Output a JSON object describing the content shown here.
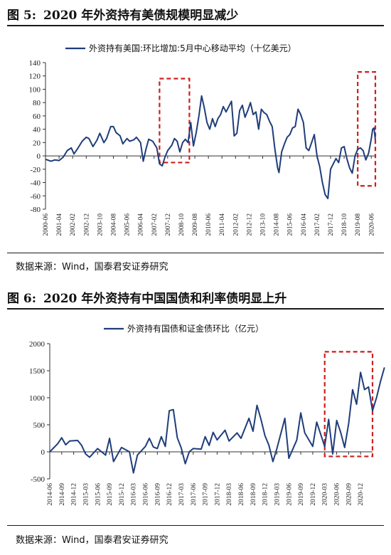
{
  "figures": [
    {
      "number": "图 5:",
      "title": "2020 年外资持有美债规模明显减少",
      "source": "数据来源：Wind，国泰君安证券研究"
    },
    {
      "number": "图 6:",
      "title": "2020 年外资持有中国国债和利率债明显上升",
      "source": "数据来源：Wind，国泰君安证券研究"
    }
  ],
  "colors": {
    "line": "#1f3d7a",
    "highlight": "#cc1f1f",
    "axis": "#333333"
  },
  "chart_data": [
    {
      "type": "line",
      "legend": "外资持有美国:环比增加:5月中心移动平均（十亿美元）",
      "legend_position": "top-center",
      "ylim": [
        -80,
        140
      ],
      "yticks": [
        140,
        120,
        100,
        80,
        60,
        40,
        20,
        0,
        -20,
        -40,
        -60,
        -80
      ],
      "xlim": [
        "2000-06",
        "2020-09"
      ],
      "xticks": [
        "2000-06",
        "2001-04",
        "2002-02",
        "2002-12",
        "2003-10",
        "2004-08",
        "2005-06",
        "2006-04",
        "2007-02",
        "2007-12",
        "2008-10",
        "2009-08",
        "2010-06",
        "2011-04",
        "2012-02",
        "2012-12",
        "2013-10",
        "2014-08",
        "2015-06",
        "2016-04",
        "2017-02",
        "2017-12",
        "2018-10",
        "2019-08",
        "2020-06"
      ],
      "highlights": [
        [
          "2007-06",
          "2009-04"
        ],
        [
          "2019-08",
          "2020-09"
        ]
      ],
      "grid": false,
      "series": [
        {
          "points": [
            [
              "2000-06",
              -5
            ],
            [
              "2000-10",
              -8
            ],
            [
              "2001-01",
              -6
            ],
            [
              "2001-04",
              -7
            ],
            [
              "2001-07",
              -2
            ],
            [
              "2001-10",
              8
            ],
            [
              "2002-01",
              12
            ],
            [
              "2002-03",
              3
            ],
            [
              "2002-06",
              12
            ],
            [
              "2002-09",
              22
            ],
            [
              "2002-12",
              28
            ],
            [
              "2003-02",
              26
            ],
            [
              "2003-05",
              14
            ],
            [
              "2003-08",
              24
            ],
            [
              "2003-10",
              34
            ],
            [
              "2004-01",
              20
            ],
            [
              "2004-03",
              26
            ],
            [
              "2004-06",
              44
            ],
            [
              "2004-08",
              44
            ],
            [
              "2004-10",
              35
            ],
            [
              "2005-01",
              30
            ],
            [
              "2005-03",
              18
            ],
            [
              "2005-06",
              26
            ],
            [
              "2005-08",
              22
            ],
            [
              "2005-11",
              24
            ],
            [
              "2006-01",
              28
            ],
            [
              "2006-04",
              20
            ],
            [
              "2006-06",
              -8
            ],
            [
              "2006-08",
              10
            ],
            [
              "2006-10",
              25
            ],
            [
              "2007-01",
              22
            ],
            [
              "2007-04",
              12
            ],
            [
              "2007-06",
              -12
            ],
            [
              "2007-08",
              -15
            ],
            [
              "2007-10",
              -2
            ],
            [
              "2007-12",
              8
            ],
            [
              "2008-03",
              16
            ],
            [
              "2008-05",
              26
            ],
            [
              "2008-07",
              22
            ],
            [
              "2008-09",
              6
            ],
            [
              "2008-11",
              20
            ],
            [
              "2009-01",
              25
            ],
            [
              "2009-03",
              20
            ],
            [
              "2009-05",
              50
            ],
            [
              "2009-07",
              15
            ],
            [
              "2009-09",
              35
            ],
            [
              "2009-11",
              60
            ],
            [
              "2010-01",
              90
            ],
            [
              "2010-03",
              72
            ],
            [
              "2010-05",
              50
            ],
            [
              "2010-07",
              40
            ],
            [
              "2010-09",
              56
            ],
            [
              "2010-11",
              44
            ],
            [
              "2011-01",
              56
            ],
            [
              "2011-03",
              62
            ],
            [
              "2011-05",
              74
            ],
            [
              "2011-07",
              66
            ],
            [
              "2011-09",
              74
            ],
            [
              "2011-11",
              82
            ],
            [
              "2012-01",
              30
            ],
            [
              "2012-03",
              34
            ],
            [
              "2012-05",
              68
            ],
            [
              "2012-07",
              76
            ],
            [
              "2012-09",
              58
            ],
            [
              "2012-11",
              68
            ],
            [
              "2013-01",
              80
            ],
            [
              "2013-03",
              62
            ],
            [
              "2013-05",
              66
            ],
            [
              "2013-07",
              40
            ],
            [
              "2013-09",
              70
            ],
            [
              "2013-11",
              65
            ],
            [
              "2014-01",
              62
            ],
            [
              "2014-03",
              52
            ],
            [
              "2014-05",
              44
            ],
            [
              "2014-07",
              10
            ],
            [
              "2014-09",
              -18
            ],
            [
              "2014-10",
              -25
            ],
            [
              "2014-12",
              6
            ],
            [
              "2015-02",
              18
            ],
            [
              "2015-04",
              28
            ],
            [
              "2015-06",
              32
            ],
            [
              "2015-08",
              42
            ],
            [
              "2015-10",
              44
            ],
            [
              "2015-12",
              70
            ],
            [
              "2016-02",
              62
            ],
            [
              "2016-04",
              50
            ],
            [
              "2016-06",
              12
            ],
            [
              "2016-08",
              8
            ],
            [
              "2016-10",
              20
            ],
            [
              "2016-12",
              32
            ],
            [
              "2017-02",
              0
            ],
            [
              "2017-04",
              -16
            ],
            [
              "2017-06",
              -40
            ],
            [
              "2017-08",
              -58
            ],
            [
              "2017-10",
              -64
            ],
            [
              "2017-12",
              -20
            ],
            [
              "2018-02",
              -12
            ],
            [
              "2018-04",
              -4
            ],
            [
              "2018-06",
              -10
            ],
            [
              "2018-08",
              12
            ],
            [
              "2018-10",
              14
            ],
            [
              "2018-12",
              -4
            ],
            [
              "2019-02",
              -18
            ],
            [
              "2019-04",
              -26
            ],
            [
              "2019-06",
              0
            ],
            [
              "2019-08",
              10
            ],
            [
              "2019-10",
              12
            ],
            [
              "2019-12",
              8
            ],
            [
              "2020-02",
              -6
            ],
            [
              "2020-04",
              4
            ],
            [
              "2020-06",
              26
            ],
            [
              "2020-07",
              40
            ],
            [
              "2020-08",
              42
            ],
            [
              "2020-09",
              24
            ]
          ]
        }
      ]
    },
    {
      "type": "line",
      "legend": "外资持有国债和证金债环比（亿元）",
      "legend_position": "top-left",
      "ylim": [
        -500,
        2000
      ],
      "yticks": [
        2000,
        1500,
        1000,
        500,
        0,
        -500
      ],
      "xlim": [
        "2014-06",
        "2021-03"
      ],
      "xticks": [
        "2014-06",
        "2014-09",
        "2014-12",
        "2015-03",
        "2015-06",
        "2015-09",
        "2015-12",
        "2016-03",
        "2016-06",
        "2016-09",
        "2016-12",
        "2017-03",
        "2017-06",
        "2017-09",
        "2017-12",
        "2018-03",
        "2018-06",
        "2018-09",
        "2018-12",
        "2019-03",
        "2019-06",
        "2019-09",
        "2019-12",
        "2020-03",
        "2020-06",
        "2020-09",
        "2020-12"
      ],
      "highlights": [
        [
          "2020-03",
          "2021-03"
        ]
      ],
      "grid": false,
      "series": [
        {
          "points": [
            [
              "2014-06",
              0
            ],
            [
              "2014-08",
              150
            ],
            [
              "2014-09",
              260
            ],
            [
              "2014-10",
              130
            ],
            [
              "2014-11",
              200
            ],
            [
              "2015-01",
              210
            ],
            [
              "2015-02",
              120
            ],
            [
              "2015-03",
              -40
            ],
            [
              "2015-04",
              -100
            ],
            [
              "2015-06",
              60
            ],
            [
              "2015-08",
              -60
            ],
            [
              "2015-09",
              250
            ],
            [
              "2015-10",
              -180
            ],
            [
              "2015-12",
              80
            ],
            [
              "2016-02",
              0
            ],
            [
              "2016-03",
              -390
            ],
            [
              "2016-04",
              -60
            ],
            [
              "2016-06",
              100
            ],
            [
              "2016-07",
              250
            ],
            [
              "2016-08",
              90
            ],
            [
              "2016-09",
              60
            ],
            [
              "2016-10",
              280
            ],
            [
              "2016-11",
              100
            ],
            [
              "2016-12",
              760
            ],
            [
              "2017-01",
              780
            ],
            [
              "2017-02",
              260
            ],
            [
              "2017-03",
              70
            ],
            [
              "2017-04",
              -220
            ],
            [
              "2017-05",
              0
            ],
            [
              "2017-06",
              60
            ],
            [
              "2017-08",
              50
            ],
            [
              "2017-09",
              280
            ],
            [
              "2017-10",
              120
            ],
            [
              "2017-11",
              360
            ],
            [
              "2017-12",
              220
            ],
            [
              "2018-02",
              400
            ],
            [
              "2018-03",
              200
            ],
            [
              "2018-05",
              350
            ],
            [
              "2018-06",
              250
            ],
            [
              "2018-08",
              620
            ],
            [
              "2018-09",
              380
            ],
            [
              "2018-10",
              860
            ],
            [
              "2018-11",
              600
            ],
            [
              "2018-12",
              300
            ],
            [
              "2019-01",
              120
            ],
            [
              "2019-02",
              -180
            ],
            [
              "2019-03",
              60
            ],
            [
              "2019-05",
              620
            ],
            [
              "2019-06",
              -120
            ],
            [
              "2019-08",
              220
            ],
            [
              "2019-09",
              720
            ],
            [
              "2019-10",
              350
            ],
            [
              "2019-12",
              100
            ],
            [
              "2020-01",
              550
            ],
            [
              "2020-03",
              100
            ],
            [
              "2020-04",
              600
            ],
            [
              "2020-05",
              -40
            ],
            [
              "2020-06",
              580
            ],
            [
              "2020-07",
              360
            ],
            [
              "2020-08",
              80
            ],
            [
              "2020-09",
              520
            ],
            [
              "2020-10",
              1150
            ],
            [
              "2020-11",
              880
            ],
            [
              "2020-12",
              1470
            ],
            [
              "2021-01",
              1150
            ],
            [
              "2021-02",
              1200
            ],
            [
              "2021-03",
              760
            ],
            [
              "2021-04",
              1000
            ],
            [
              "2021-05",
              1300
            ],
            [
              "2021-06",
              1560
            ]
          ]
        }
      ]
    }
  ]
}
